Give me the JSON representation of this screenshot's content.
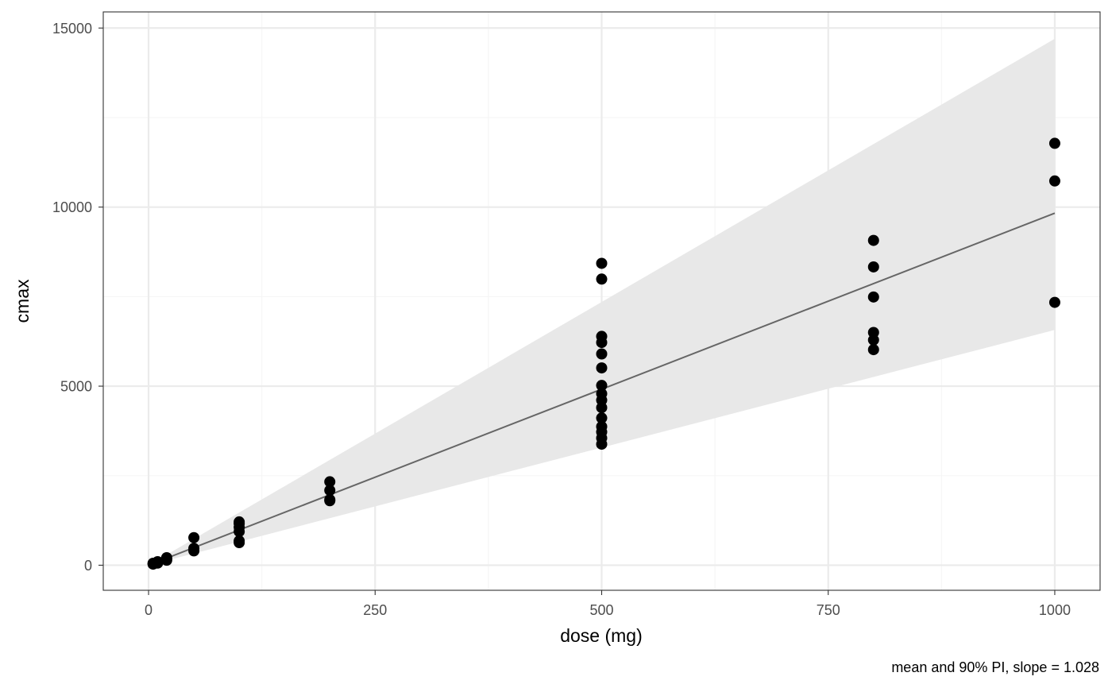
{
  "chart_data": {
    "type": "scatter",
    "xlabel": "dose (mg)",
    "ylabel": "cmax",
    "caption": "mean and 90% PI, slope = 1.028",
    "xlim": [
      -50,
      1050
    ],
    "ylim": [
      -700,
      15450
    ],
    "x_ticks": [
      0,
      250,
      500,
      750,
      1000
    ],
    "x_tick_labels": [
      "0",
      "250",
      "500",
      "750",
      "1000"
    ],
    "y_ticks": [
      0,
      5000,
      10000,
      15000
    ],
    "y_tick_labels": [
      "0",
      "5000",
      "10000",
      "15000"
    ],
    "x_minor_ticks": [
      125,
      375,
      625,
      875
    ],
    "y_minor_ticks": [
      2500,
      7500,
      12500
    ],
    "grid": true,
    "theme": "black-and-white",
    "colors": {
      "points": "#000000",
      "fit_line": "#666666",
      "band": "#e8e8e8",
      "grid_major": "#ebebeb",
      "grid_minor": "#f5f5f5",
      "panel_border": "#333333"
    },
    "points": [
      {
        "x": 5,
        "y": 30
      },
      {
        "x": 5,
        "y": 45
      },
      {
        "x": 5,
        "y": 55
      },
      {
        "x": 10,
        "y": 60
      },
      {
        "x": 10,
        "y": 80
      },
      {
        "x": 10,
        "y": 100
      },
      {
        "x": 20,
        "y": 140
      },
      {
        "x": 20,
        "y": 170
      },
      {
        "x": 20,
        "y": 210
      },
      {
        "x": 50,
        "y": 400
      },
      {
        "x": 50,
        "y": 470
      },
      {
        "x": 50,
        "y": 770
      },
      {
        "x": 100,
        "y": 630
      },
      {
        "x": 100,
        "y": 680
      },
      {
        "x": 100,
        "y": 940
      },
      {
        "x": 100,
        "y": 1060
      },
      {
        "x": 100,
        "y": 1160
      },
      {
        "x": 100,
        "y": 1210
      },
      {
        "x": 200,
        "y": 1800
      },
      {
        "x": 200,
        "y": 1830
      },
      {
        "x": 200,
        "y": 2090
      },
      {
        "x": 200,
        "y": 2330
      },
      {
        "x": 500,
        "y": 3380
      },
      {
        "x": 500,
        "y": 3550
      },
      {
        "x": 500,
        "y": 3720
      },
      {
        "x": 500,
        "y": 3870
      },
      {
        "x": 500,
        "y": 4110
      },
      {
        "x": 500,
        "y": 4400
      },
      {
        "x": 500,
        "y": 4610
      },
      {
        "x": 500,
        "y": 4790
      },
      {
        "x": 500,
        "y": 5020
      },
      {
        "x": 500,
        "y": 5510
      },
      {
        "x": 500,
        "y": 5900
      },
      {
        "x": 500,
        "y": 6220
      },
      {
        "x": 500,
        "y": 6390
      },
      {
        "x": 500,
        "y": 7990
      },
      {
        "x": 500,
        "y": 8430
      },
      {
        "x": 800,
        "y": 6020
      },
      {
        "x": 800,
        "y": 6290
      },
      {
        "x": 800,
        "y": 6500
      },
      {
        "x": 800,
        "y": 7490
      },
      {
        "x": 800,
        "y": 8330
      },
      {
        "x": 800,
        "y": 9070
      },
      {
        "x": 1000,
        "y": 7340
      },
      {
        "x": 1000,
        "y": 10730
      },
      {
        "x": 1000,
        "y": 11780
      }
    ],
    "fit_line": {
      "x": [
        0,
        1000
      ],
      "y": [
        0,
        9830
      ]
    },
    "prediction_interval": {
      "x": [
        0,
        1000
      ],
      "upper": [
        0,
        14700
      ],
      "lower": [
        0,
        6570
      ]
    }
  }
}
